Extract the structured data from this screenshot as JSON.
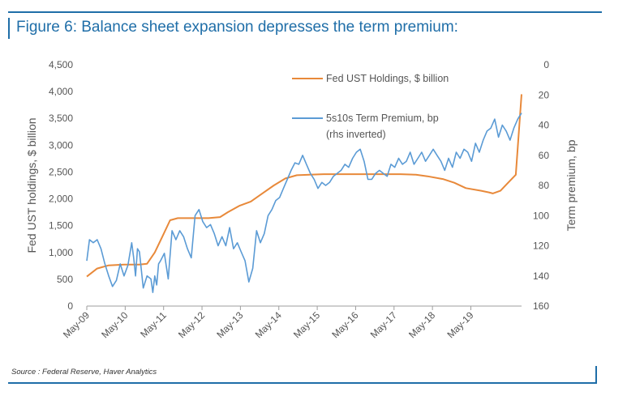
{
  "figure": {
    "title": "Figure 6: Balance sheet expansion depresses the term premium:",
    "source": "Source : Federal Reserve, Haver Analytics"
  },
  "colors": {
    "frame": "#1f6ea8",
    "holdings": "#e8893a",
    "premium": "#5b9bd5",
    "axis": "#9e9e9e",
    "text": "#555555"
  },
  "chart_data": {
    "type": "line",
    "ylabel": "Fed UST holdings, $ billion",
    "y2label": "Term premium, bp",
    "ylim": [
      0,
      4500
    ],
    "y2lim": [
      0,
      160
    ],
    "y2_inverted": true,
    "yticks": [
      "0",
      "500",
      "1,000",
      "1,500",
      "2,000",
      "2,500",
      "3,000",
      "3,500",
      "4,000",
      "4,500"
    ],
    "y2ticks": [
      "0",
      "20",
      "40",
      "60",
      "80",
      "100",
      "120",
      "140",
      "160"
    ],
    "xticks": [
      "May-09",
      "May-10",
      "May-11",
      "May-12",
      "May-13",
      "May-14",
      "May-15",
      "May-16",
      "May-17",
      "May-18",
      "May-19"
    ],
    "legend": [
      "Fed UST Holdings, $ billion",
      "5s10s Term Premium, bp",
      "(rhs inverted)"
    ],
    "series": [
      {
        "name": "Fed UST Holdings, $ billion",
        "axis": "left",
        "x": [
          2009.33,
          2009.6,
          2009.9,
          2010.3,
          2010.7,
          2010.9,
          2011.1,
          2011.3,
          2011.5,
          2011.7,
          2012.0,
          2012.5,
          2012.8,
          2013.0,
          2013.3,
          2013.6,
          2013.9,
          2014.2,
          2014.5,
          2014.8,
          2015.5,
          2016.5,
          2017.5,
          2017.9,
          2018.2,
          2018.6,
          2018.9,
          2019.2,
          2019.6,
          2019.8,
          2019.9,
          2020.1,
          2020.3,
          2020.5,
          2020.65
        ],
        "y": [
          550,
          700,
          760,
          775,
          775,
          790,
          1000,
          1300,
          1600,
          1640,
          1640,
          1640,
          1660,
          1750,
          1870,
          1950,
          2100,
          2250,
          2380,
          2440,
          2460,
          2460,
          2460,
          2450,
          2420,
          2370,
          2300,
          2200,
          2150,
          2120,
          2100,
          2150,
          2300,
          2450,
          3950
        ]
      },
      {
        "name": "5s10s Term Premium, bp",
        "axis": "right",
        "x": [
          2009.33,
          2009.4,
          2009.5,
          2009.6,
          2009.7,
          2009.8,
          2009.9,
          2010.0,
          2010.1,
          2010.2,
          2010.3,
          2010.4,
          2010.5,
          2010.55,
          2010.6,
          2010.65,
          2010.7,
          2010.8,
          2010.9,
          2011.0,
          2011.05,
          2011.1,
          2011.15,
          2011.2,
          2011.25,
          2011.35,
          2011.45,
          2011.55,
          2011.65,
          2011.75,
          2011.85,
          2011.95,
          2012.05,
          2012.15,
          2012.25,
          2012.35,
          2012.45,
          2012.55,
          2012.65,
          2012.75,
          2012.85,
          2012.95,
          2013.05,
          2013.15,
          2013.25,
          2013.35,
          2013.45,
          2013.55,
          2013.65,
          2013.75,
          2013.85,
          2013.95,
          2014.05,
          2014.15,
          2014.25,
          2014.35,
          2014.45,
          2014.55,
          2014.65,
          2014.75,
          2014.85,
          2014.95,
          2015.05,
          2015.15,
          2015.25,
          2015.35,
          2015.45,
          2015.55,
          2015.65,
          2015.75,
          2015.85,
          2015.95,
          2016.05,
          2016.15,
          2016.25,
          2016.35,
          2016.45,
          2016.55,
          2016.65,
          2016.75,
          2016.85,
          2016.95,
          2017.05,
          2017.15,
          2017.25,
          2017.35,
          2017.45,
          2017.55,
          2017.65,
          2017.75,
          2017.85,
          2017.95,
          2018.05,
          2018.15,
          2018.25,
          2018.35,
          2018.45,
          2018.55,
          2018.65,
          2018.75,
          2018.85,
          2018.95,
          2019.05,
          2019.15,
          2019.25,
          2019.35,
          2019.45,
          2019.55,
          2019.65,
          2019.75,
          2019.85,
          2019.95,
          2020.05,
          2020.15,
          2020.25,
          2020.35,
          2020.45,
          2020.55,
          2020.65
        ],
        "y": [
          130,
          116,
          118,
          116,
          122,
          132,
          140,
          147,
          143,
          132,
          140,
          133,
          118,
          128,
          140,
          122,
          124,
          148,
          140,
          142,
          151,
          140,
          146,
          132,
          130,
          125,
          142,
          110,
          116,
          110,
          114,
          122,
          128,
          100,
          96,
          104,
          108,
          106,
          112,
          120,
          114,
          120,
          108,
          122,
          118,
          124,
          130,
          144,
          135,
          110,
          118,
          112,
          100,
          96,
          90,
          88,
          82,
          76,
          70,
          65,
          66,
          60,
          66,
          72,
          76,
          82,
          78,
          80,
          78,
          74,
          72,
          70,
          66,
          68,
          62,
          58,
          56,
          64,
          76,
          76,
          72,
          70,
          72,
          74,
          66,
          68,
          62,
          66,
          64,
          58,
          66,
          62,
          58,
          64,
          60,
          56,
          60,
          64,
          70,
          62,
          68,
          58,
          62,
          56,
          58,
          64,
          52,
          58,
          50,
          44,
          42,
          36,
          48,
          40,
          44,
          50,
          42,
          36,
          32
        ]
      }
    ]
  }
}
